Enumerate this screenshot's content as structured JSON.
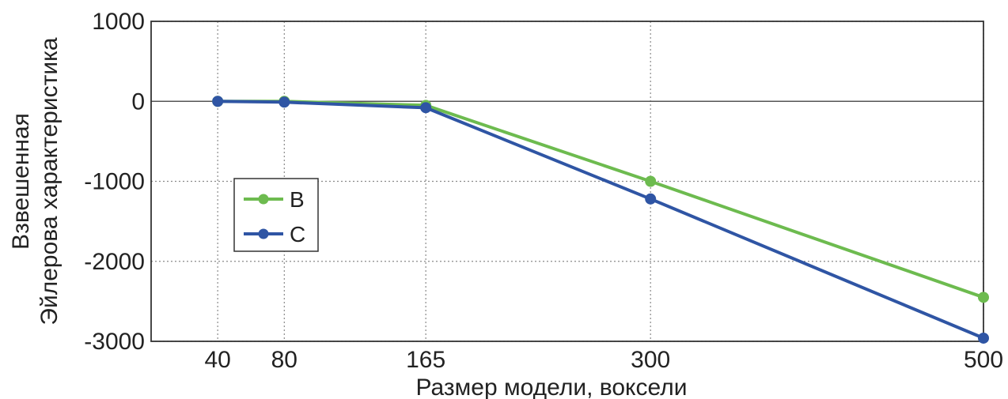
{
  "chart_data": {
    "type": "line",
    "xlabel": "Размер модели, воксели",
    "ylabel_lines": [
      "Взвешенная",
      "Эйлерова характеристика"
    ],
    "x_ticks": [
      40,
      80,
      165,
      300,
      500
    ],
    "y_ticks": [
      1000,
      0,
      -1000,
      -2000,
      -3000
    ],
    "xlim": [
      0,
      500
    ],
    "ylim": [
      -3000,
      1000
    ],
    "grid": true,
    "legend_position": "center-left",
    "series": [
      {
        "name": "B",
        "color": "#6dbb4f",
        "x": [
          40,
          80,
          165,
          300,
          500
        ],
        "y": [
          0,
          0,
          -50,
          -1000,
          -2450
        ]
      },
      {
        "name": "C",
        "color": "#2f55a4",
        "x": [
          40,
          80,
          165,
          300,
          500
        ],
        "y": [
          0,
          -10,
          -80,
          -1220,
          -2960
        ]
      }
    ]
  }
}
